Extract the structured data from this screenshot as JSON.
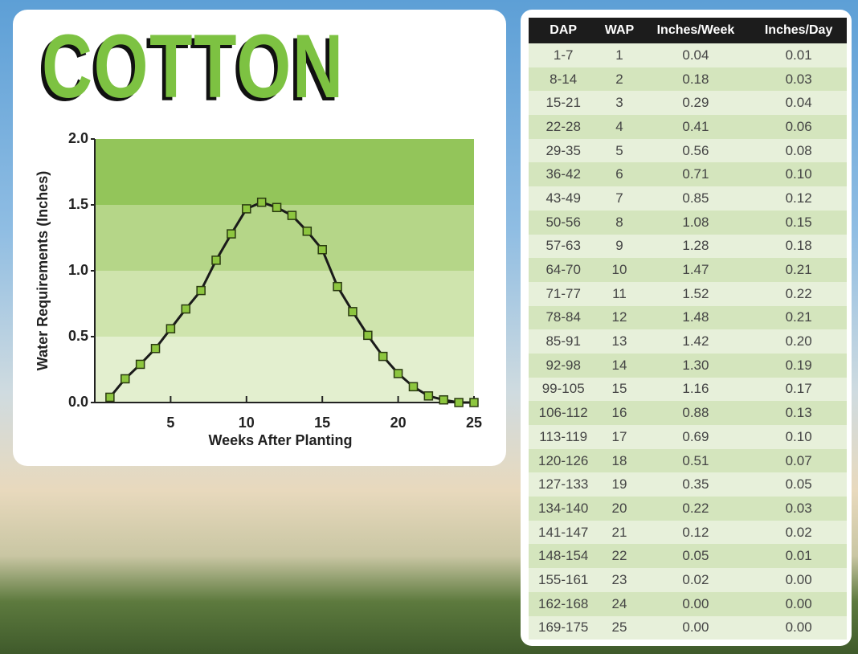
{
  "title": "COTTON",
  "chart_data": {
    "type": "line",
    "x": [
      1,
      2,
      3,
      4,
      5,
      6,
      7,
      8,
      9,
      10,
      11,
      12,
      13,
      14,
      15,
      16,
      17,
      18,
      19,
      20,
      21,
      22,
      23,
      24,
      25
    ],
    "series": [
      {
        "color": "#8dc63f",
        "values": [
          0.04,
          0.18,
          0.29,
          0.41,
          0.56,
          0.71,
          0.85,
          1.08,
          1.28,
          1.47,
          1.52,
          1.48,
          1.42,
          1.3,
          1.16,
          0.88,
          0.69,
          0.51,
          0.35,
          0.22,
          0.12,
          0.05,
          0.02,
          0.0,
          0.0
        ]
      }
    ],
    "xlim": [
      0,
      25
    ],
    "xticks": [
      5,
      10,
      15,
      20,
      25
    ],
    "ylim": [
      0,
      2
    ],
    "yticks": [
      {
        "value": 0,
        "label": "0.0"
      },
      0.5,
      {
        "value": 1,
        "label": "1.0"
      },
      1.5,
      {
        "value": 2,
        "label": "2.0"
      }
    ],
    "band_colors": [
      "#e3efcf",
      "#cfe4ad",
      "#b5d688",
      "#93c55a"
    ],
    "x_label": "Weeks After Planting",
    "y_label": "Water Requirements (Inches)"
  },
  "table": {
    "header": [
      "DAP",
      "WAP",
      "Inches/Week",
      "Inches/Day"
    ],
    "rows": [
      [
        "1-7",
        "1",
        "0.04",
        "0.01"
      ],
      [
        "8-14",
        "2",
        "0.18",
        "0.03"
      ],
      [
        "15-21",
        "3",
        "0.29",
        "0.04"
      ],
      [
        "22-28",
        "4",
        "0.41",
        "0.06"
      ],
      [
        "29-35",
        "5",
        "0.56",
        "0.08"
      ],
      [
        "36-42",
        "6",
        "0.71",
        "0.10"
      ],
      [
        "43-49",
        "7",
        "0.85",
        "0.12"
      ],
      [
        "50-56",
        "8",
        "1.08",
        "0.15"
      ],
      [
        "57-63",
        "9",
        "1.28",
        "0.18"
      ],
      [
        "64-70",
        "10",
        "1.47",
        "0.21"
      ],
      [
        "71-77",
        "11",
        "1.52",
        "0.22"
      ],
      [
        "78-84",
        "12",
        "1.48",
        "0.21"
      ],
      [
        "85-91",
        "13",
        "1.42",
        "0.20"
      ],
      [
        "92-98",
        "14",
        "1.30",
        "0.19"
      ],
      [
        "99-105",
        "15",
        "1.16",
        "0.17"
      ],
      [
        "106-112",
        "16",
        "0.88",
        "0.13"
      ],
      [
        "113-119",
        "17",
        "0.69",
        "0.10"
      ],
      [
        "120-126",
        "18",
        "0.51",
        "0.07"
      ],
      [
        "127-133",
        "19",
        "0.35",
        "0.05"
      ],
      [
        "134-140",
        "20",
        "0.22",
        "0.03"
      ],
      [
        "141-147",
        "21",
        "0.12",
        "0.02"
      ],
      [
        "148-154",
        "22",
        "0.05",
        "0.01"
      ],
      [
        "155-161",
        "23",
        "0.02",
        "0.00"
      ],
      [
        "162-168",
        "24",
        "0.00",
        "0.00"
      ],
      [
        "169-175",
        "25",
        "0.00",
        "0.00"
      ]
    ]
  }
}
